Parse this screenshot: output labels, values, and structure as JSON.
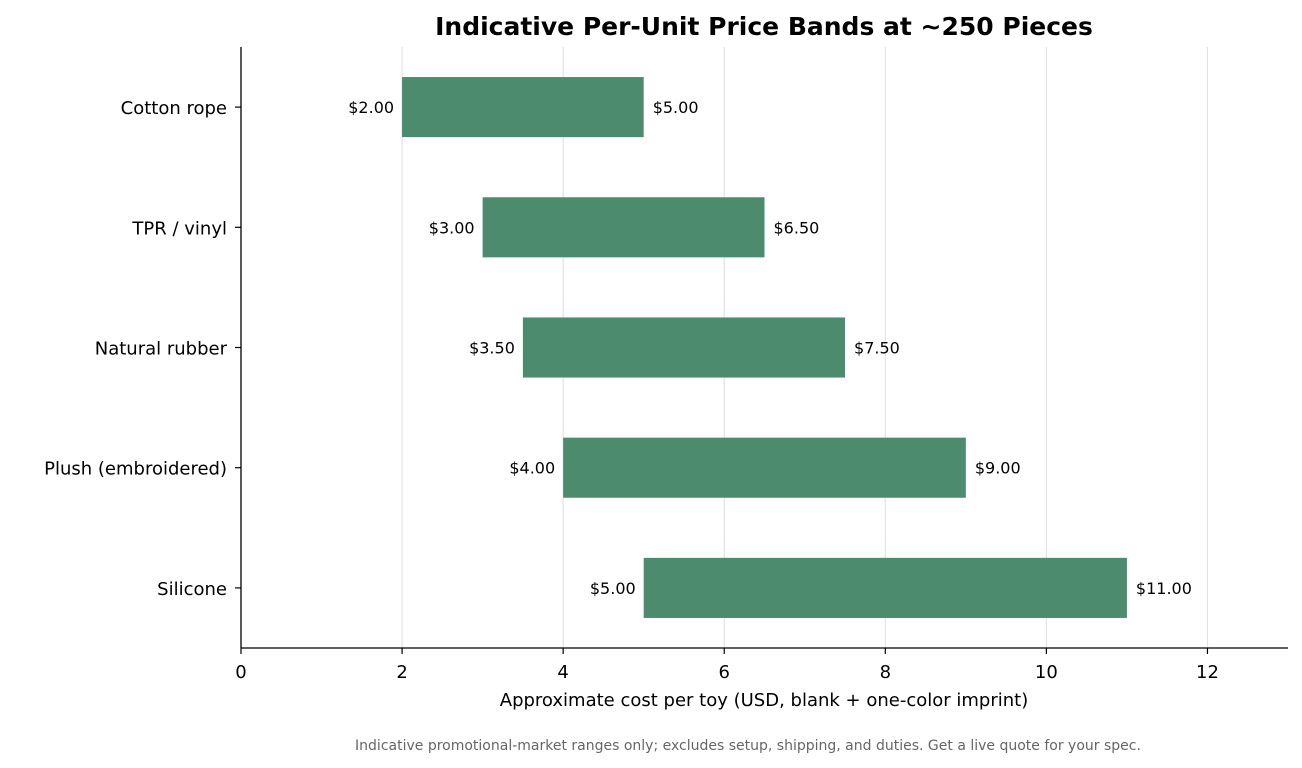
{
  "chart_data": {
    "type": "bar",
    "orientation": "horizontal",
    "title": "Indicative Per-Unit Price Bands at ~250 Pieces",
    "xlabel": "Approximate cost per toy (USD, blank + one-color imprint)",
    "ylabel": "",
    "xlim": [
      0,
      13
    ],
    "xticks": [
      0,
      2,
      4,
      6,
      8,
      10,
      12
    ],
    "grid": "vertical",
    "categories": [
      "Cotton rope",
      "TPR / vinyl",
      "Natural rubber",
      "Plush (embroidered)",
      "Silicone"
    ],
    "low": [
      2.0,
      3.0,
      3.5,
      4.0,
      5.0
    ],
    "high": [
      5.0,
      6.5,
      7.5,
      9.0,
      11.0
    ],
    "low_labels": [
      "$2.00",
      "$3.00",
      "$3.50",
      "$4.00",
      "$5.00"
    ],
    "high_labels": [
      "$5.00",
      "$6.50",
      "$7.50",
      "$9.00",
      "$11.00"
    ],
    "bar_color": "#4d8b6e",
    "footnote": "Indicative promotional-market ranges only; excludes setup, shipping, and duties. Get a live quote for your spec."
  }
}
